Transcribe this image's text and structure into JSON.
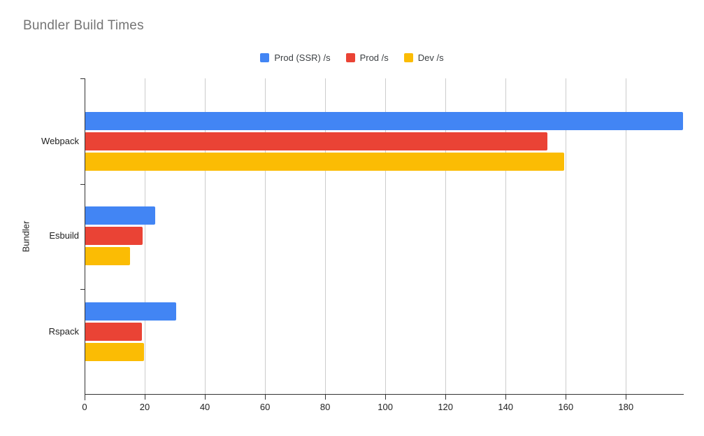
{
  "chart_data": {
    "type": "bar",
    "orientation": "horizontal",
    "title": "Bundler Build Times",
    "xlabel": "",
    "ylabel": "Bundler",
    "categories": [
      "Webpack",
      "Esbuild",
      "Rspack"
    ],
    "series": [
      {
        "name": "Prod (SSR) /s",
        "color": "#4285F4",
        "values": [
          199,
          23.5,
          30.5
        ]
      },
      {
        "name": "Prod /s",
        "color": "#EA4335",
        "values": [
          154,
          19.3,
          19.1
        ]
      },
      {
        "name": "Dev /s",
        "color": "#FBBC04",
        "values": [
          159.5,
          15.2,
          19.8
        ]
      }
    ],
    "xlim": [
      0,
      199
    ],
    "xticks": [
      0,
      20,
      40,
      60,
      80,
      100,
      120,
      140,
      160,
      180
    ],
    "grid": true,
    "legend_position": "top-center"
  },
  "colors": {
    "background": "#ffffff",
    "title_text": "#757575",
    "axis_text": "#212121",
    "legend_text": "#3c4043",
    "gridline": "#cccccc",
    "axis_line": "#333333"
  }
}
